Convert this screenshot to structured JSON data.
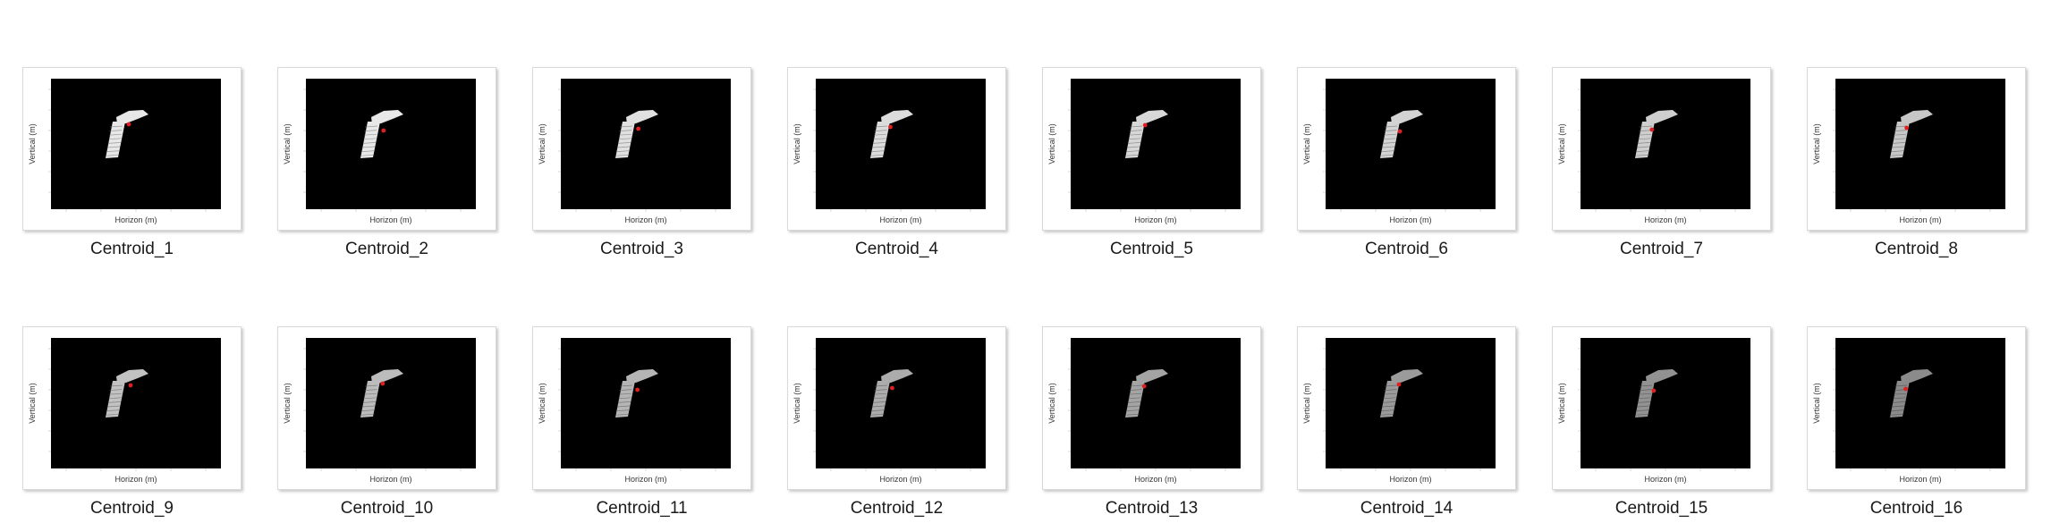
{
  "gallery": {
    "axis_labels": {
      "xlabel": "Horizon (m)",
      "ylabel": "Vertical (m)"
    },
    "colors": {
      "plot_background": "#000000",
      "point_cloud": "#e8e8e8",
      "centroid_marker": "#e02020"
    },
    "items": [
      {
        "name": "Centroid_1",
        "brightness": 1.0
      },
      {
        "name": "Centroid_2",
        "brightness": 1.0
      },
      {
        "name": "Centroid_3",
        "brightness": 0.97
      },
      {
        "name": "Centroid_4",
        "brightness": 0.95
      },
      {
        "name": "Centroid_5",
        "brightness": 0.93
      },
      {
        "name": "Centroid_6",
        "brightness": 0.91
      },
      {
        "name": "Centroid_7",
        "brightness": 0.89
      },
      {
        "name": "Centroid_8",
        "brightness": 0.86
      },
      {
        "name": "Centroid_9",
        "brightness": 0.84
      },
      {
        "name": "Centroid_10",
        "brightness": 0.81
      },
      {
        "name": "Centroid_11",
        "brightness": 0.78
      },
      {
        "name": "Centroid_12",
        "brightness": 0.74
      },
      {
        "name": "Centroid_13",
        "brightness": 0.71
      },
      {
        "name": "Centroid_14",
        "brightness": 0.67
      },
      {
        "name": "Centroid_15",
        "brightness": 0.63
      },
      {
        "name": "Centroid_16",
        "brightness": 0.6
      }
    ]
  }
}
